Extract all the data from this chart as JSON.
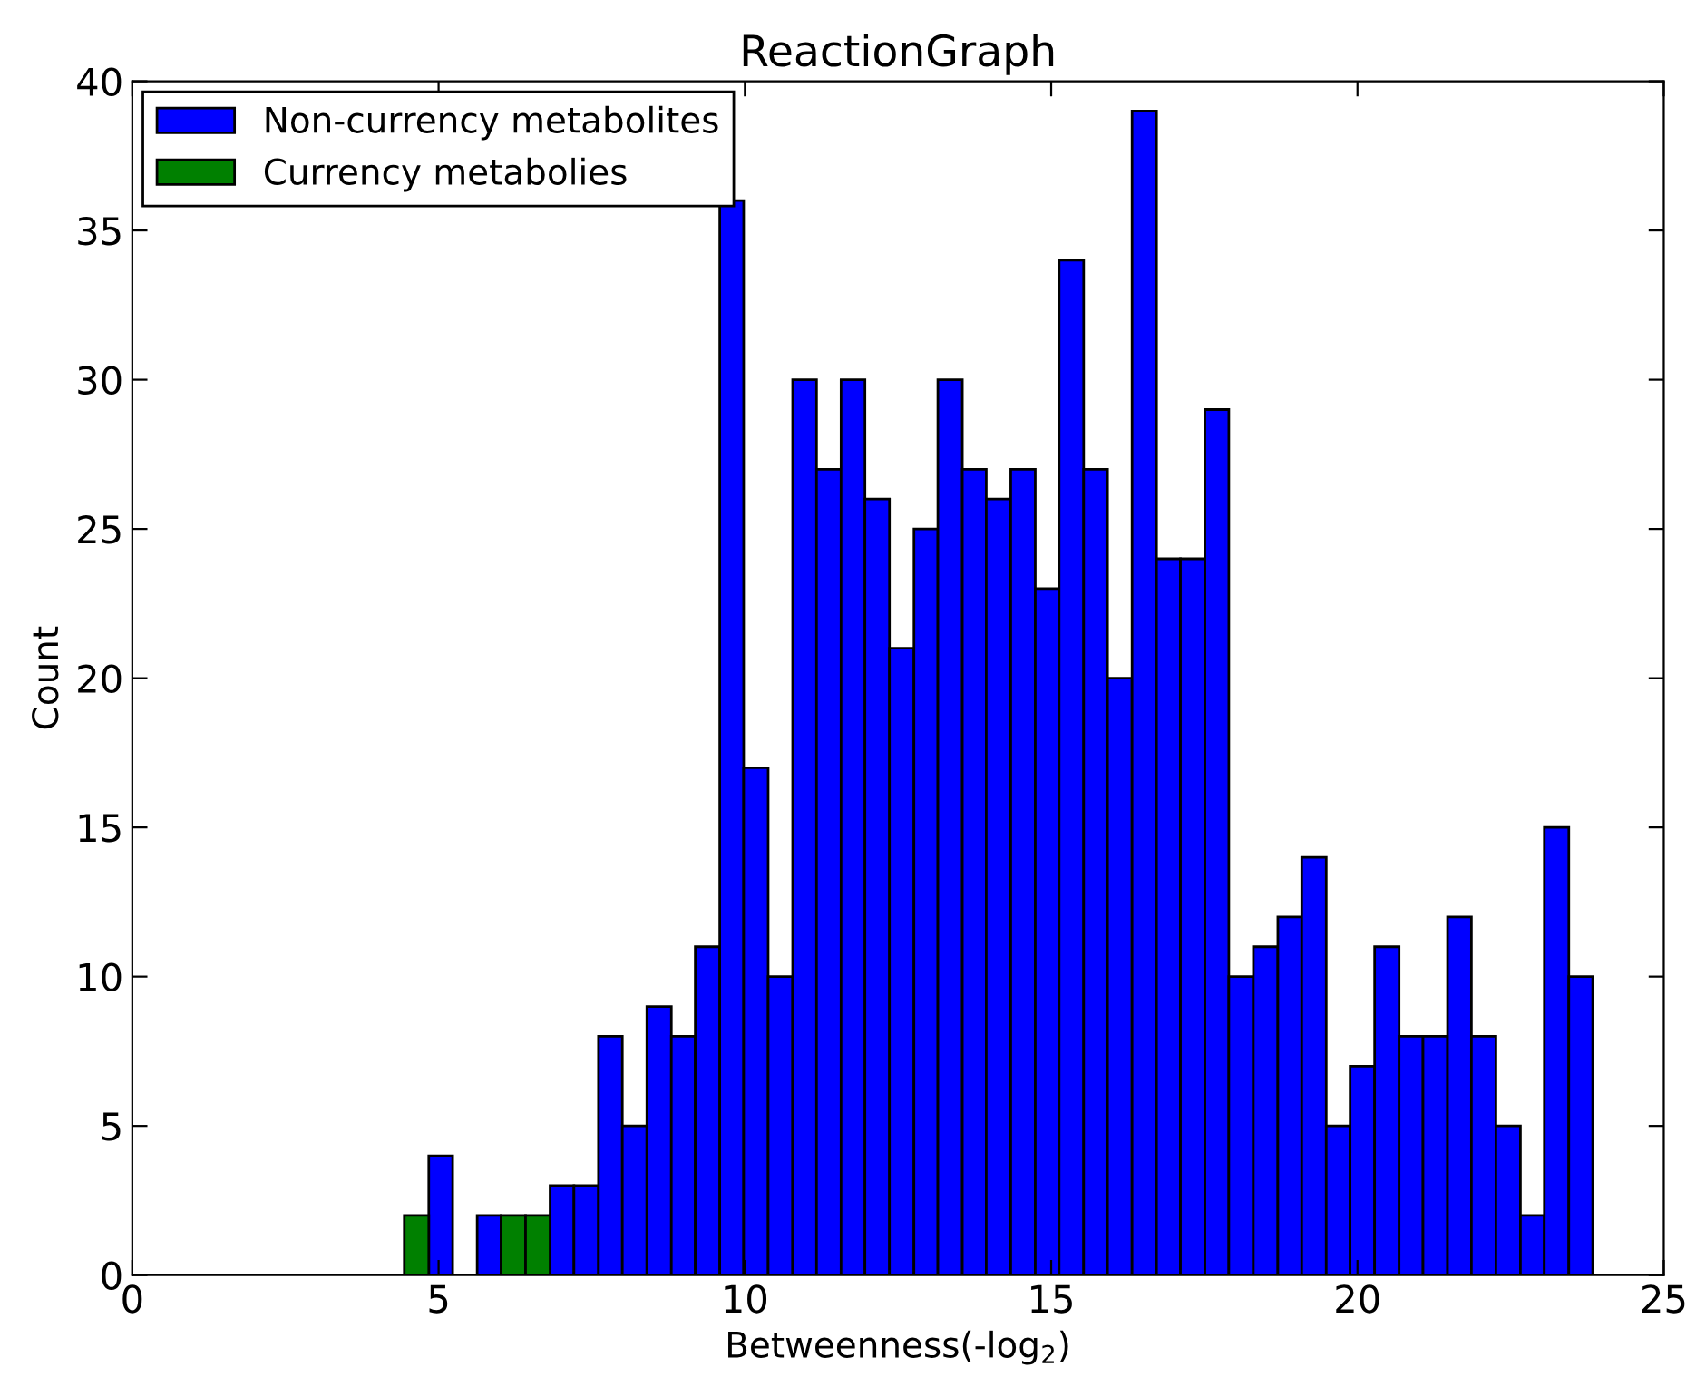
{
  "chart_data": {
    "type": "histogram",
    "title": "ReactionGraph",
    "xlabel": "Betweenness(-log$_{2}$)",
    "ylabel": "Count",
    "bins": [
      4.44,
      4.84,
      5.23,
      5.63,
      6.02,
      6.42,
      6.82,
      7.21,
      7.61,
      8.0,
      8.4,
      8.8,
      9.19,
      9.59,
      9.98,
      10.38,
      10.78,
      11.17,
      11.57,
      11.96,
      12.36,
      12.76,
      13.15,
      13.55,
      13.94,
      14.34,
      14.74,
      15.13,
      15.53,
      15.92,
      16.32,
      16.72,
      17.11,
      17.51,
      17.9,
      18.3,
      18.7,
      19.09,
      19.49,
      19.88,
      20.28,
      20.68,
      21.07,
      21.47,
      21.86,
      22.26,
      22.66,
      23.05,
      23.45,
      23.84
    ],
    "series": [
      {
        "name": "Non-currency metabolites",
        "color": "#0000ff",
        "values": [
          0,
          4,
          0,
          2,
          0,
          0,
          3,
          3,
          8,
          5,
          9,
          8,
          11,
          36,
          17,
          10,
          30,
          27,
          30,
          26,
          21,
          25,
          30,
          27,
          26,
          27,
          23,
          34,
          27,
          20,
          39,
          24,
          24,
          29,
          10,
          11,
          12,
          14,
          5,
          7,
          11,
          8,
          8,
          12,
          8,
          5,
          2,
          15,
          10
        ]
      },
      {
        "name": "Currency metabolies",
        "color": "#008000",
        "values": [
          2,
          0,
          0,
          0,
          2,
          2,
          0,
          0,
          0,
          0,
          0,
          0,
          0,
          0,
          0,
          0,
          0,
          0,
          0,
          0,
          0,
          0,
          0,
          0,
          0,
          0,
          0,
          0,
          0,
          0,
          0,
          0,
          0,
          0,
          0,
          0,
          0,
          0,
          0,
          0,
          0,
          0,
          0,
          0,
          0,
          0,
          0,
          0,
          0
        ]
      }
    ],
    "xlim": [
      0,
      25
    ],
    "xticks": [
      0,
      5,
      10,
      15,
      20,
      25
    ],
    "ylim": [
      0,
      40
    ],
    "yticks": [
      0,
      5,
      10,
      15,
      20,
      25,
      30,
      35,
      40
    ],
    "legend": "top left",
    "grid": false
  }
}
